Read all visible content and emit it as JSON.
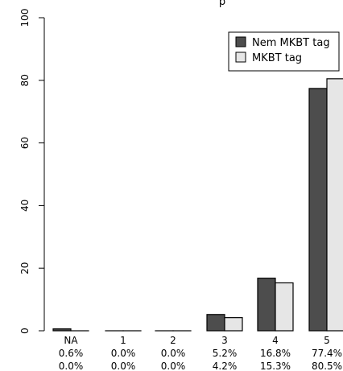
{
  "chart_data": {
    "type": "bar",
    "title_fragment": "p",
    "categories": [
      "NA",
      "1",
      "2",
      "3",
      "4",
      "5"
    ],
    "series": [
      {
        "name": "Nem MKBT tag",
        "values": [
          0.6,
          0.0,
          0.0,
          5.2,
          16.8,
          77.4
        ],
        "labels": [
          "0.6%",
          "0.0%",
          "0.0%",
          "5.2%",
          "16.8%",
          "77.4%"
        ],
        "color": "#4d4d4d"
      },
      {
        "name": "MKBT tag",
        "values": [
          0.0,
          0.0,
          0.0,
          4.2,
          15.3,
          80.5
        ],
        "labels": [
          "0.0%",
          "0.0%",
          "0.0%",
          "4.2%",
          "15.3%",
          "80.5%"
        ],
        "color": "#e6e6e6"
      }
    ],
    "ylim": [
      0,
      100
    ],
    "yticks": [
      "0",
      "20",
      "40",
      "60",
      "80",
      "100"
    ],
    "legend": "top-right",
    "grid": false
  }
}
